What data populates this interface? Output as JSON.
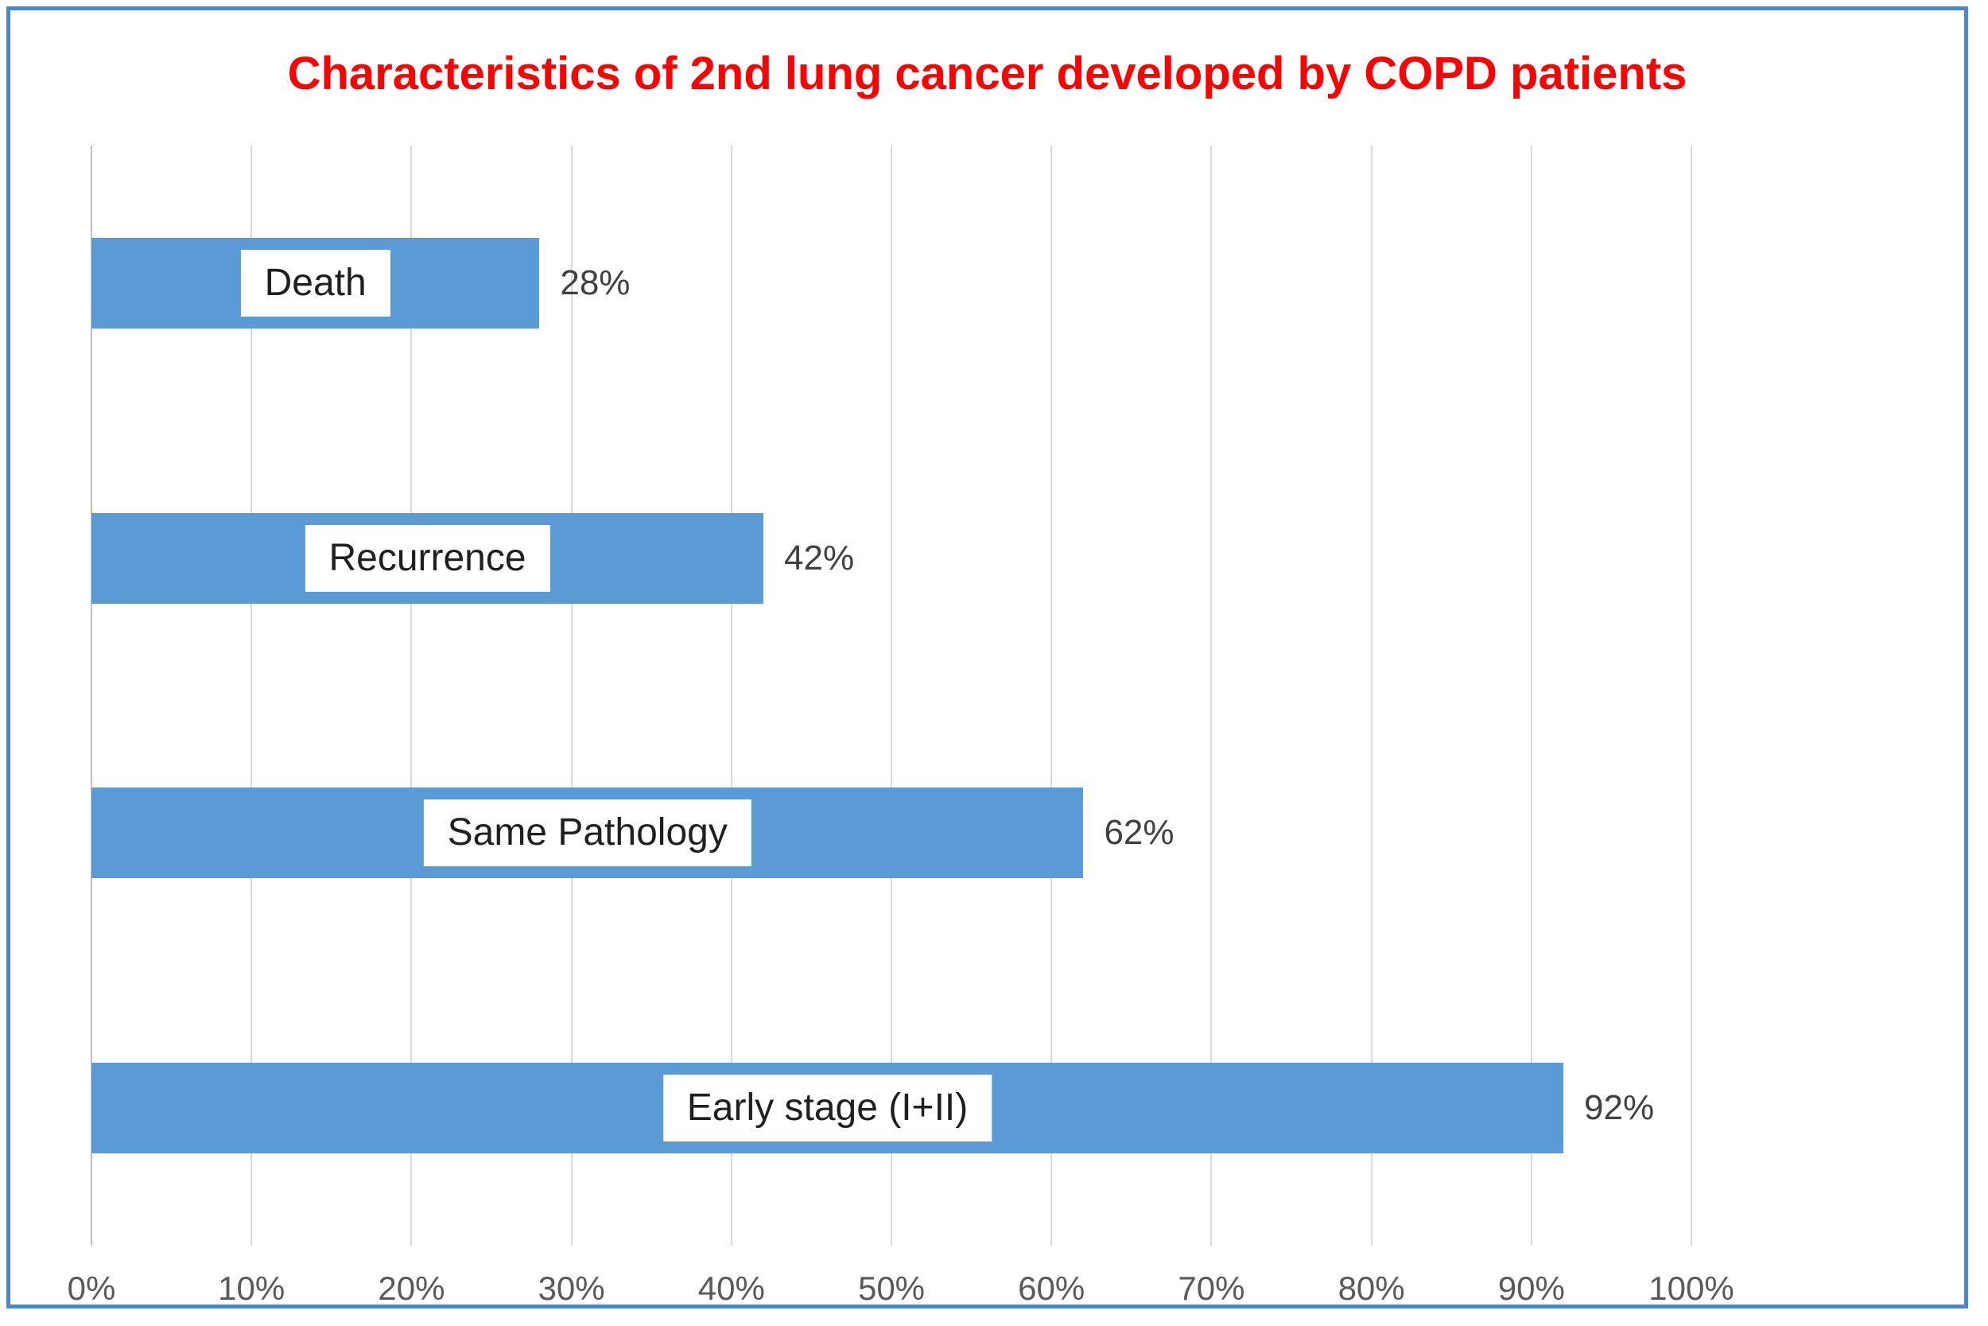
{
  "chart_data": {
    "type": "bar",
    "orientation": "horizontal",
    "title": "Characteristics of 2nd lung cancer developed by COPD patients",
    "categories": [
      "Death",
      "Recurrence",
      "Same Pathology",
      "Early stage (I+II)"
    ],
    "values": [
      28,
      42,
      62,
      92
    ],
    "value_labels": [
      "28%",
      "42%",
      "62%",
      "92%"
    ],
    "x_ticks": [
      "0%",
      "10%",
      "20%",
      "30%",
      "40%",
      "50%",
      "60%",
      "70%",
      "80%",
      "90%",
      "100%"
    ],
    "xlim": [
      0,
      100
    ],
    "grid": "vertical-only",
    "legend": "none",
    "bar_label_style": "white box centered inside bar",
    "value_label_position": "outside end of bar"
  },
  "colors": {
    "bar": "#5B9BD5",
    "title": "#FF0000",
    "frame_border": "#4F86C6",
    "gridline": "#D9D9D9",
    "axis_line": "#BFBFBF",
    "tick_text": "#595959",
    "value_text": "#404040",
    "category_text": "#1F1F1F"
  }
}
